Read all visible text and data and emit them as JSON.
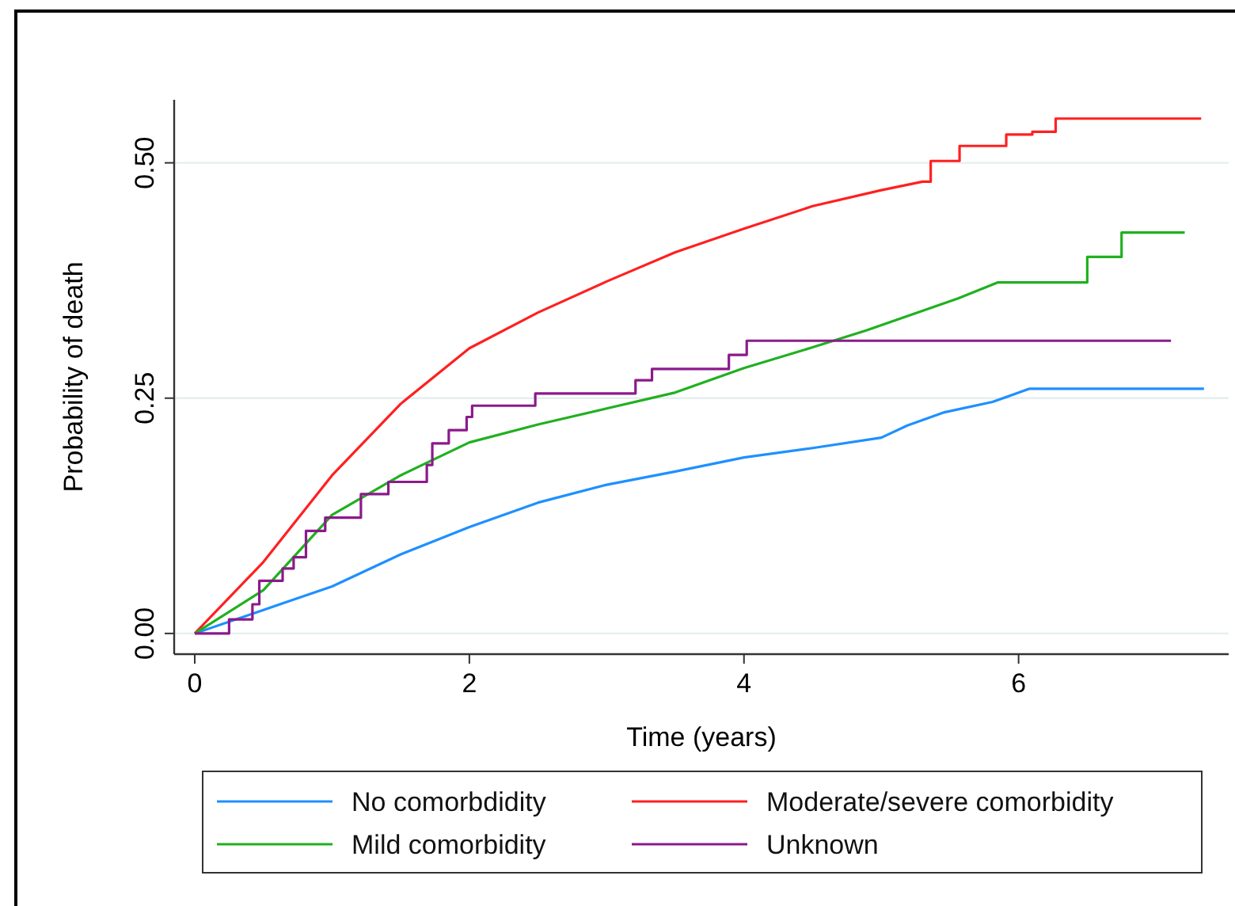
{
  "chart_data": {
    "type": "step",
    "xlabel": "Time (years)",
    "ylabel": "Probability of death",
    "xlim": [
      -0.15,
      7.53
    ],
    "ylim": [
      -0.022,
      0.567
    ],
    "xticks": [
      0,
      2,
      4,
      6
    ],
    "yticks": [
      {
        "value": 0,
        "label": "0.00"
      },
      {
        "value": 0.25,
        "label": "0.25"
      },
      {
        "value": 0.5,
        "label": "0.50"
      }
    ],
    "grid": "y",
    "legend": "bottom",
    "line_style": "solid",
    "series": [
      {
        "name": "No comorbdidity",
        "color": "#1e90ff",
        "type": "line",
        "x": [
          0,
          0.5,
          1,
          1.5,
          2,
          2.5,
          3,
          3.5,
          4,
          4.5,
          5,
          5.19,
          5.46,
          5.81,
          6.08,
          7.35
        ],
        "values": [
          0,
          0.025,
          0.05,
          0.084,
          0.113,
          0.139,
          0.158,
          0.172,
          0.187,
          0.197,
          0.208,
          0.221,
          0.235,
          0.246,
          0.26,
          0.26
        ]
      },
      {
        "name": "Moderate/severe comorbidity",
        "color": "#ff2020",
        "type": "line",
        "x": [
          0,
          0.5,
          1,
          1.5,
          2,
          2.5,
          3,
          3.5,
          4,
          4.5,
          5,
          5.3,
          5.36,
          5.36,
          5.57,
          5.57,
          5.91,
          5.91,
          6.1,
          6.1,
          6.27,
          6.27,
          7.33
        ],
        "values": [
          0,
          0.076,
          0.168,
          0.244,
          0.303,
          0.341,
          0.374,
          0.405,
          0.43,
          0.454,
          0.471,
          0.48,
          0.48,
          0.502,
          0.502,
          0.518,
          0.518,
          0.53,
          0.53,
          0.533,
          0.533,
          0.547,
          0.547
        ]
      },
      {
        "name": "Mild comorbidity",
        "color": "#20b020",
        "type": "line",
        "x": [
          0,
          0.5,
          1,
          1.5,
          2,
          2.5,
          3,
          3.5,
          4,
          4.5,
          4.89,
          5.56,
          5.85,
          6.5,
          6.5,
          6.75,
          6.75,
          7.21
        ],
        "values": [
          0,
          0.046,
          0.126,
          0.168,
          0.203,
          0.222,
          0.239,
          0.256,
          0.282,
          0.304,
          0.322,
          0.356,
          0.373,
          0.373,
          0.4,
          0.4,
          0.426,
          0.426
        ]
      },
      {
        "name": "Unknown",
        "color": "#8b1a8b",
        "x": [
          0,
          0.25,
          0.42,
          0.47,
          0.64,
          0.72,
          0.81,
          0.95,
          1.21,
          1.41,
          1.69,
          1.73,
          1.85,
          1.98,
          2.02,
          2.48,
          3.21,
          3.33,
          3.89,
          4.02,
          7.11
        ],
        "values": [
          0,
          0.015,
          0.031,
          0.056,
          0.069,
          0.081,
          0.109,
          0.123,
          0.148,
          0.161,
          0.179,
          0.202,
          0.216,
          0.23,
          0.242,
          0.255,
          0.269,
          0.281,
          0.296,
          0.311,
          0.311
        ]
      }
    ]
  }
}
